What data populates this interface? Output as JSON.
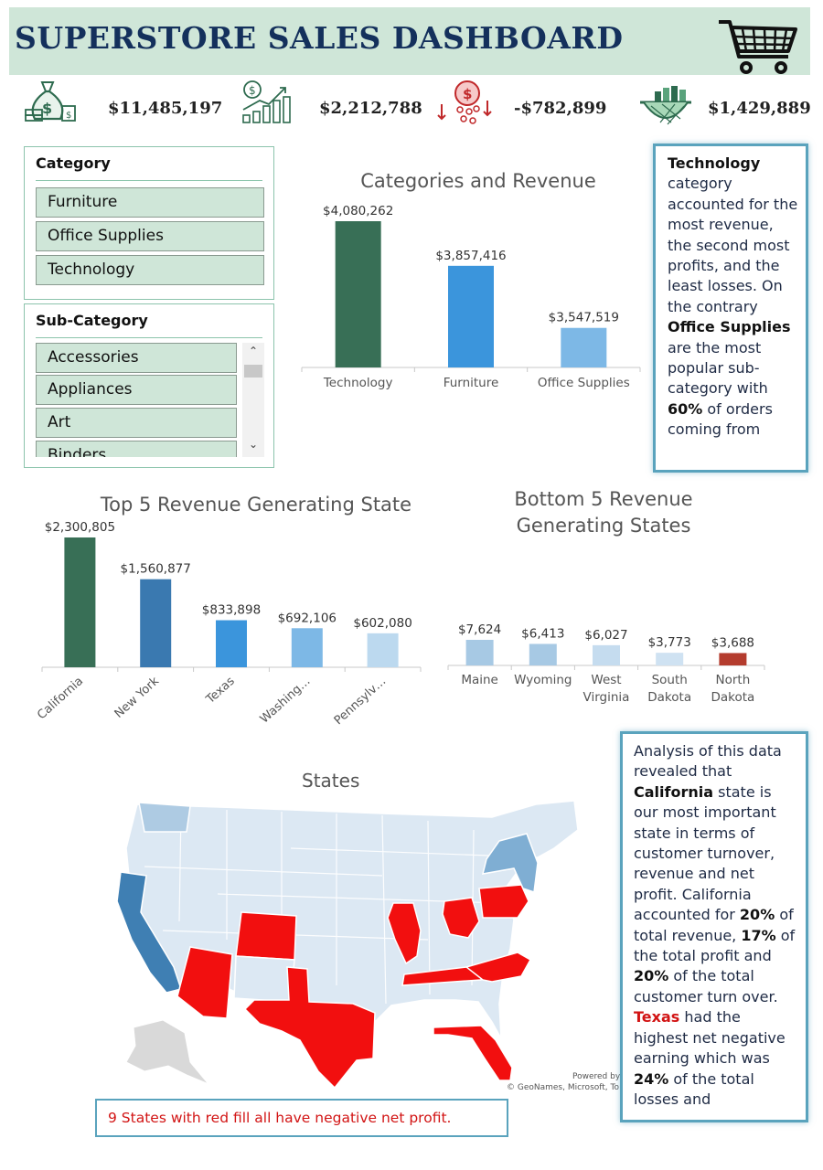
{
  "header": {
    "title": "SUPERSTORE SALES DASHBOARD"
  },
  "kpis": [
    {
      "icon": "money-bag-icon",
      "value": "$11,485,197",
      "color": "#2e6b4f"
    },
    {
      "icon": "growth-chart-icon",
      "value": "$2,212,788",
      "color": "#2e6b4f"
    },
    {
      "icon": "loss-coins-icon",
      "value": "-$782,899",
      "color": "#c0282a"
    },
    {
      "icon": "basket-icon",
      "value": "$1,429,889",
      "color": "#2e6b4f"
    }
  ],
  "slicers": {
    "category": {
      "title": "Category",
      "items": [
        "Furniture",
        "Office Supplies",
        "Technology"
      ]
    },
    "subcategory": {
      "title": "Sub-Category",
      "items": [
        "Accessories",
        "Appliances",
        "Art",
        "Binders"
      ]
    }
  },
  "chart_data": [
    {
      "type": "bar",
      "title": "Categories and Revenue",
      "categories": [
        "Technology",
        "Furniture",
        "Office Supplies"
      ],
      "values": [
        4080262,
        3857416,
        3547519
      ],
      "labels": [
        "$4,080,262",
        "$3,857,416",
        "$3,547,519"
      ],
      "colors": [
        "#386f56",
        "#3b95dc",
        "#7db8e6"
      ]
    },
    {
      "type": "bar",
      "title": "Top 5 Revenue Generating State",
      "categories": [
        "California",
        "New York",
        "Texas",
        "Washing…",
        "Pennsylv…"
      ],
      "values": [
        2300805,
        1560877,
        833898,
        692106,
        602080
      ],
      "labels": [
        "$2,300,805",
        "$1,560,877",
        "$833,898",
        "$692,106",
        "$602,080"
      ],
      "colors": [
        "#386f56",
        "#3a79b0",
        "#3b95dc",
        "#7db8e6",
        "#bcd9ef"
      ]
    },
    {
      "type": "bar",
      "title": "Bottom 5 Revenue Generating States",
      "categories": [
        "Maine",
        "Wyoming",
        "West Virginia",
        "South Dakota",
        "North Dakota"
      ],
      "values": [
        7624,
        6413,
        6027,
        3773,
        3688
      ],
      "labels": [
        "$7,624",
        "$6,413",
        "$6,027",
        "$3,773",
        "$3,688"
      ],
      "colors": [
        "#a7c9e4",
        "#a7c9e4",
        "#c5dcef",
        "#cfe2f2",
        "#b43c2e"
      ]
    }
  ],
  "notes": {
    "tech_bold": "Technology",
    "tech_text1": "category accounted for the most revenue, the second most profits, and the least losses. On the contrary",
    "tech_bold2": "Office Supplies",
    "tech_text2": "are the most popular sub-category with",
    "tech_bold3": "60%",
    "tech_text3": "of orders coming from",
    "ca_text1": "Analysis of this data revealed that",
    "ca_bold1": "California",
    "ca_text2": "state is our most important state in terms of customer turnover, revenue and net profit. California accounted for",
    "ca_bold2": "20%",
    "ca_text3": "of total revenue,",
    "ca_bold3": "17%",
    "ca_text4": "of the total profit and",
    "ca_bold4": "20%",
    "ca_text5": "of the total customer turn over.",
    "ca_bold5": "Texas",
    "ca_text6": "had the highest net negative earning which was",
    "ca_bold6": "24%",
    "ca_text7": "of the total losses and"
  },
  "map": {
    "title": "States",
    "powered_by": "Powered by",
    "attribution": "© GeoNames, Microsoft, To",
    "colors": {
      "loss": "#f20f0f",
      "top": "#3f7fb3",
      "mid": "#7faed3",
      "light": "#aecbe3",
      "base": "#dce8f3",
      "grey": "#d9d9d9"
    }
  },
  "footer_note": "9 States with red fill all have negative net profit."
}
